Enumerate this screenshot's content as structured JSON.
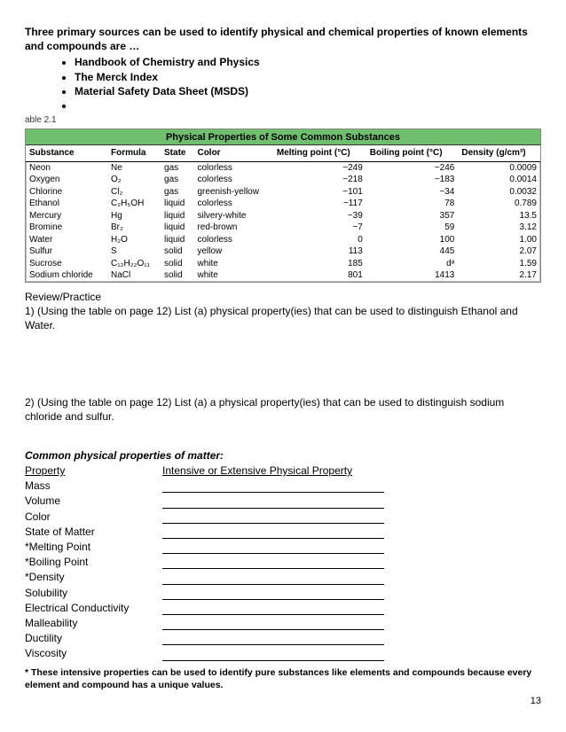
{
  "intro": "Three primary sources can be used to identify physical and chemical properties of known elements and compounds are …",
  "bullets": [
    "Handbook of Chemistry and Physics",
    "The Merck Index",
    "Material Safety Data Sheet (MSDS)",
    ""
  ],
  "table_caption": "able 2.1",
  "table_title": "Physical Properties of Some Common Substances",
  "columns": [
    "Substance",
    "Formula",
    "State",
    "Color",
    "Melting point (°C)",
    "Boiling point (°C)",
    "Density (g/cm³)"
  ],
  "rows": [
    [
      "Neon",
      "Ne",
      "gas",
      "colorless",
      "−249",
      "−246",
      "0.0009"
    ],
    [
      "Oxygen",
      "O₂",
      "gas",
      "colorless",
      "−218",
      "−183",
      "0.0014"
    ],
    [
      "Chlorine",
      "Cl₂",
      "gas",
      "greenish-yellow",
      "−101",
      "−34",
      "0.0032"
    ],
    [
      "Ethanol",
      "C₂H₅OH",
      "liquid",
      "colorless",
      "−117",
      "78",
      "0.789"
    ],
    [
      "Mercury",
      "Hg",
      "liquid",
      "silvery-white",
      "−39",
      "357",
      "13.5"
    ],
    [
      "Bromine",
      "Br₂",
      "liquid",
      "red-brown",
      "−7",
      "59",
      "3.12"
    ],
    [
      "Water",
      "H₂O",
      "liquid",
      "colorless",
      "0",
      "100",
      "1.00"
    ],
    [
      "Sulfur",
      "S",
      "solid",
      "yellow",
      "113",
      "445",
      "2.07"
    ],
    [
      "Sucrose",
      "C₁₂H₂₂O₁₁",
      "solid",
      "white",
      "185",
      "dᵃ",
      "1.59"
    ],
    [
      "Sodium chloride",
      "NaCl",
      "solid",
      "white",
      "801",
      "1413",
      "2.17"
    ]
  ],
  "review_heading": "Review/Practice",
  "q1": "1) (Using the table on page 12)  List (a) physical property(ies) that can be used to distinguish Ethanol and Water.",
  "q2": "2) (Using the table on page 12)  List (a) a physical property(ies) that can be used to distinguish sodium chloride and sulfur.",
  "common_heading": "Common physical properties of matter:",
  "prop_header_left": "Property",
  "prop_header_right": "Intensive or Extensive Physical Property",
  "properties": [
    "Mass",
    "Volume",
    "Color",
    "State of Matter",
    "*Melting Point",
    "*Boiling Point",
    "*Density",
    "Solubility",
    "Electrical Conductivity",
    "Malleability",
    "Ductility",
    "Viscosity"
  ],
  "footnote": "* These intensive properties can be used to identify pure substances like elements and compounds because every element and compound has a unique values.",
  "page_number": "13"
}
